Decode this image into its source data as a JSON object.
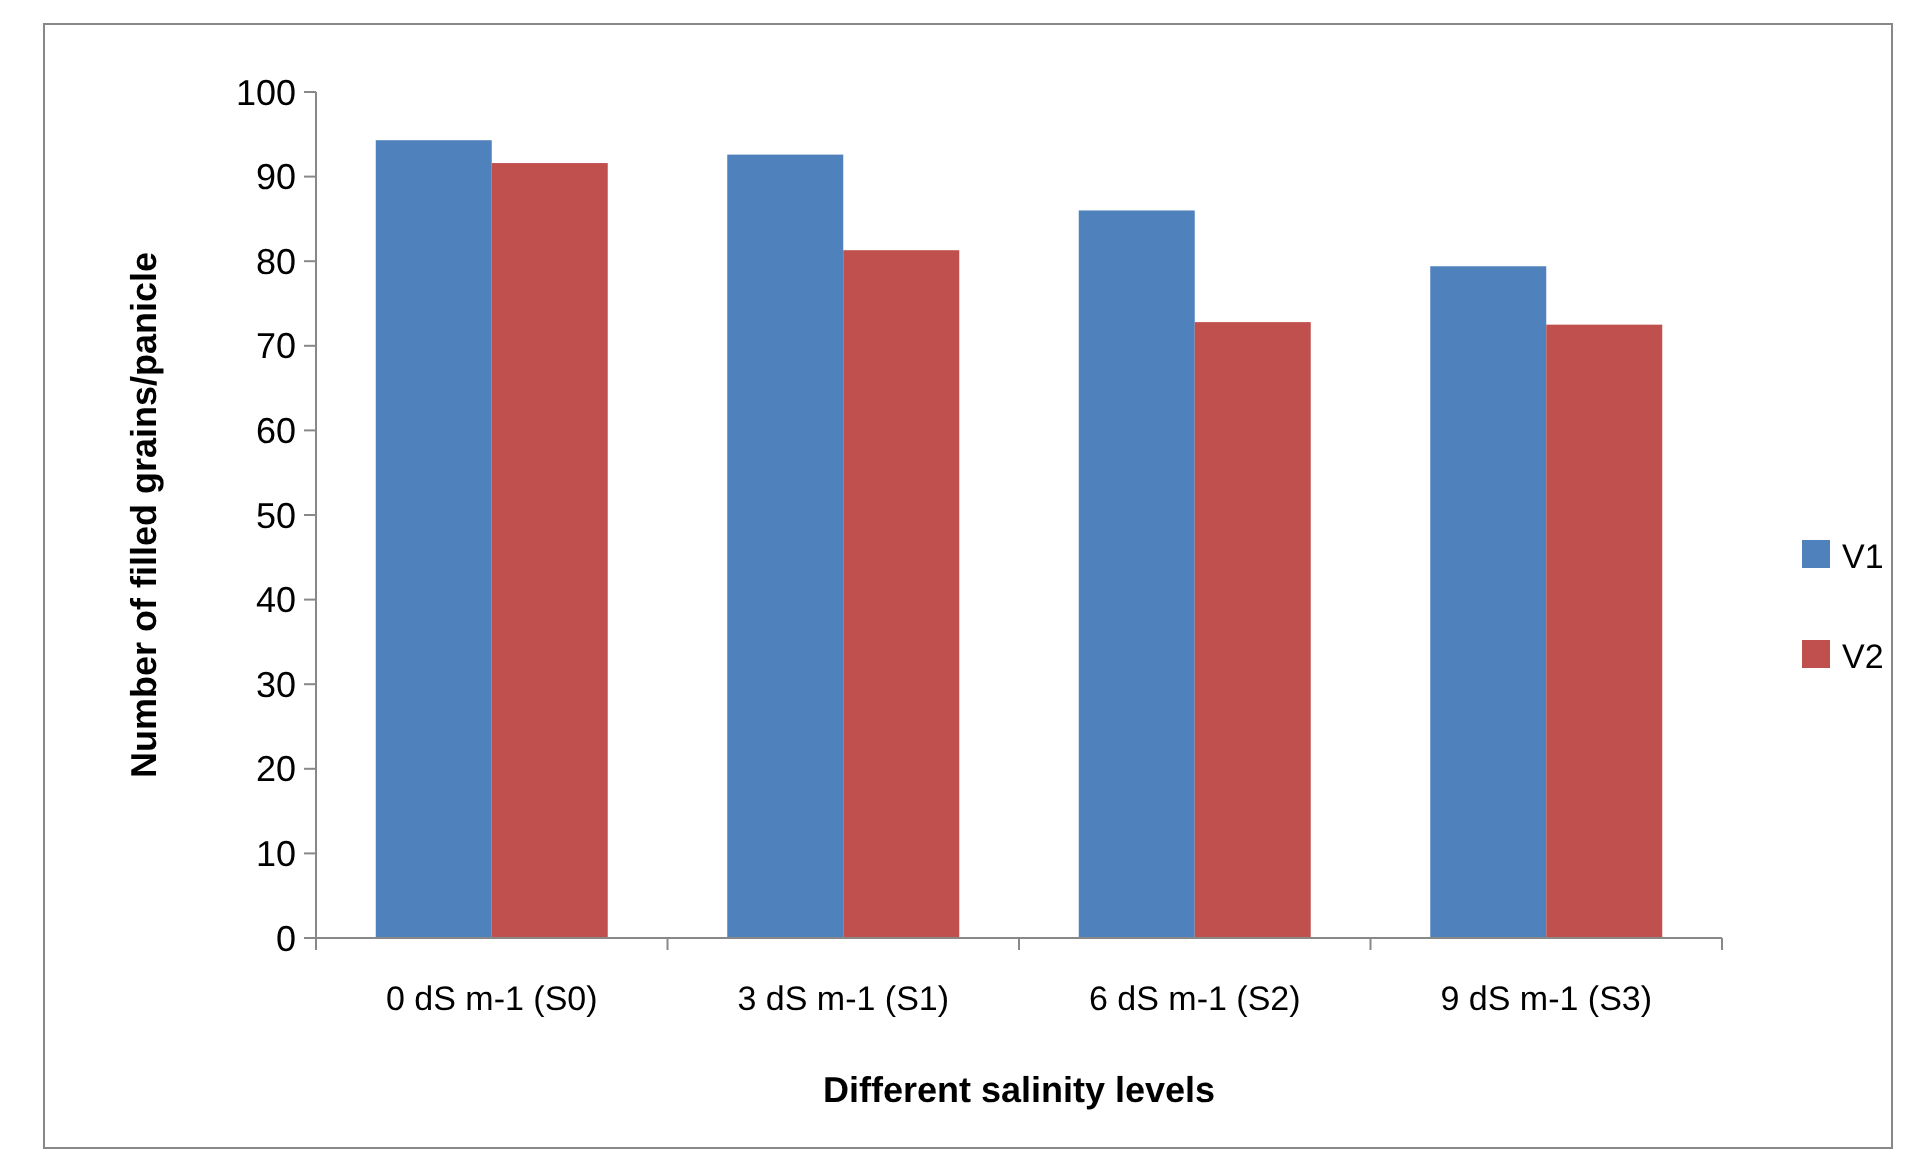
{
  "chart_data": {
    "type": "bar",
    "xlabel": "Different salinity levels",
    "ylabel": "Number of filled grains/panicle",
    "categories": [
      "0 dS m-1 (S0)",
      "3 dS m-1 (S1)",
      "6 dS m-1 (S2)",
      "9 dS m-1 (S3)"
    ],
    "series": [
      {
        "name": "V1",
        "color": "#4f81bd",
        "values": [
          94.3,
          92.6,
          86.0,
          79.4
        ]
      },
      {
        "name": "V2",
        "color": "#c0504d",
        "values": [
          91.6,
          81.3,
          72.8,
          72.5
        ]
      }
    ],
    "ylim": [
      0,
      100
    ],
    "yticks": [
      0,
      10,
      20,
      30,
      40,
      50,
      60,
      70,
      80,
      90,
      100
    ],
    "grid": false,
    "legend": "right"
  }
}
